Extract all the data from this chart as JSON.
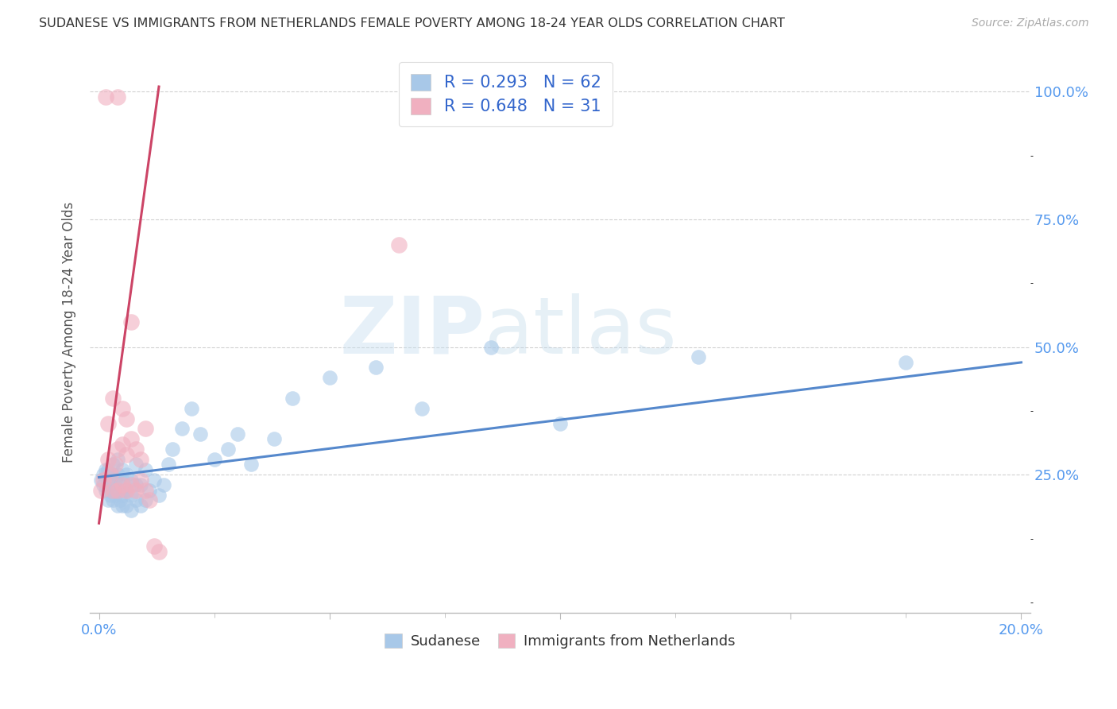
{
  "title": "SUDANESE VS IMMIGRANTS FROM NETHERLANDS FEMALE POVERTY AMONG 18-24 YEAR OLDS CORRELATION CHART",
  "source": "Source: ZipAtlas.com",
  "ylabel": "Female Poverty Among 18-24 Year Olds",
  "xlim": [
    -0.002,
    0.202
  ],
  "ylim": [
    -0.02,
    1.08
  ],
  "yticks": [
    0.25,
    0.5,
    0.75,
    1.0
  ],
  "yticklabels": [
    "25.0%",
    "50.0%",
    "75.0%",
    "100.0%"
  ],
  "blue_color": "#a8c8e8",
  "pink_color": "#f0b0c0",
  "blue_line_color": "#5588cc",
  "pink_line_color": "#cc4466",
  "R_blue": 0.293,
  "N_blue": 62,
  "R_pink": 0.648,
  "N_pink": 31,
  "legend_label_blue": "Sudanese",
  "legend_label_pink": "Immigrants from Netherlands",
  "watermark_zip": "ZIP",
  "watermark_atlas": "atlas",
  "background_color": "#ffffff",
  "blue_points_x": [
    0.0005,
    0.001,
    0.001,
    0.0015,
    0.0015,
    0.002,
    0.002,
    0.002,
    0.0025,
    0.0025,
    0.003,
    0.003,
    0.003,
    0.003,
    0.0035,
    0.0035,
    0.004,
    0.004,
    0.004,
    0.004,
    0.0045,
    0.0045,
    0.005,
    0.005,
    0.005,
    0.005,
    0.0055,
    0.006,
    0.006,
    0.006,
    0.007,
    0.007,
    0.007,
    0.008,
    0.008,
    0.008,
    0.009,
    0.009,
    0.01,
    0.01,
    0.011,
    0.012,
    0.013,
    0.014,
    0.015,
    0.016,
    0.018,
    0.02,
    0.022,
    0.025,
    0.028,
    0.03,
    0.033,
    0.038,
    0.042,
    0.05,
    0.06,
    0.07,
    0.085,
    0.1,
    0.13,
    0.175
  ],
  "blue_points_y": [
    0.24,
    0.23,
    0.25,
    0.22,
    0.26,
    0.2,
    0.23,
    0.26,
    0.21,
    0.24,
    0.2,
    0.22,
    0.25,
    0.27,
    0.21,
    0.24,
    0.19,
    0.22,
    0.25,
    0.28,
    0.2,
    0.23,
    0.19,
    0.21,
    0.24,
    0.26,
    0.22,
    0.19,
    0.22,
    0.25,
    0.18,
    0.21,
    0.24,
    0.2,
    0.23,
    0.27,
    0.19,
    0.23,
    0.2,
    0.26,
    0.22,
    0.24,
    0.21,
    0.23,
    0.27,
    0.3,
    0.34,
    0.38,
    0.33,
    0.28,
    0.3,
    0.33,
    0.27,
    0.32,
    0.4,
    0.44,
    0.46,
    0.38,
    0.5,
    0.35,
    0.48,
    0.47
  ],
  "pink_points_x": [
    0.0005,
    0.001,
    0.0015,
    0.002,
    0.002,
    0.0025,
    0.003,
    0.003,
    0.0035,
    0.004,
    0.004,
    0.004,
    0.005,
    0.005,
    0.005,
    0.006,
    0.006,
    0.006,
    0.007,
    0.007,
    0.007,
    0.008,
    0.008,
    0.009,
    0.009,
    0.01,
    0.01,
    0.011,
    0.012,
    0.013,
    0.065
  ],
  "pink_points_y": [
    0.22,
    0.24,
    0.99,
    0.28,
    0.35,
    0.25,
    0.22,
    0.4,
    0.27,
    0.22,
    0.3,
    0.99,
    0.23,
    0.31,
    0.38,
    0.22,
    0.29,
    0.36,
    0.23,
    0.55,
    0.32,
    0.22,
    0.3,
    0.24,
    0.28,
    0.22,
    0.34,
    0.2,
    0.11,
    0.1,
    0.7
  ],
  "blue_line_x": [
    0.0,
    0.2
  ],
  "blue_line_y": [
    0.245,
    0.47
  ],
  "pink_line_x": [
    0.0,
    0.013
  ],
  "pink_line_y": [
    0.155,
    1.01
  ]
}
